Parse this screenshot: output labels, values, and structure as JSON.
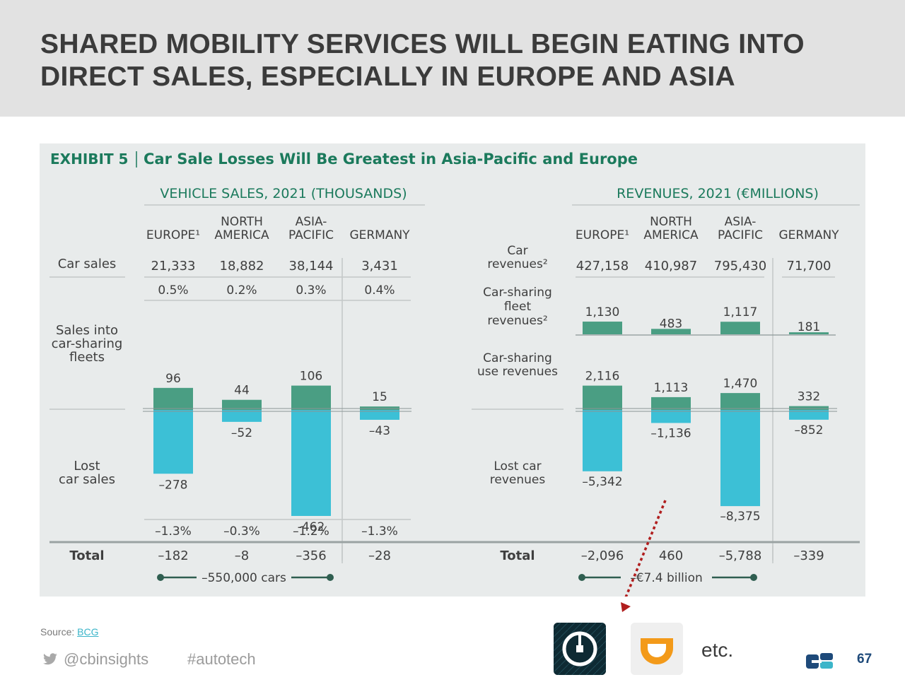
{
  "slide": {
    "title": "SHARED MOBILITY SERVICES WILL BEGIN EATING INTO DIRECT SALES, ESPECIALLY IN EUROPE AND ASIA",
    "source_label": "Source:",
    "source_link": "BCG",
    "twitter_handle": "@cbinsights",
    "hashtag": "#autotech",
    "etc_label": "etc.",
    "page_number": "67",
    "icons": {
      "uber": "uber-app-icon",
      "didi": "didi-app-icon",
      "twitter": "twitter-bird-icon",
      "cb": "cb-insights-logo"
    },
    "colors": {
      "green": "#4a9e83",
      "cyan": "#3cc0d6",
      "title_green": "#1b7a5c",
      "arrow": "#b01e1e"
    }
  },
  "chart_data": [
    {
      "type": "bar",
      "exhibit_label": "EXHIBIT 5",
      "title": "Car Sale Losses Will Be Greatest in Asia-Pacific and Europe",
      "section_title": "VEHICLE SALES, 2021 (THOUSANDS)",
      "categories": [
        [
          "",
          "EUROPE¹"
        ],
        [
          "NORTH",
          "AMERICA"
        ],
        [
          "ASIA-",
          "PACIFIC"
        ],
        [
          "",
          "GERMANY"
        ]
      ],
      "row_labels": {
        "car_sales": [
          "Car sales"
        ],
        "fleet": [
          "Sales into",
          "car-sharing",
          "fleets"
        ],
        "lost": [
          "Lost",
          "car sales"
        ],
        "total": [
          "Total"
        ]
      },
      "car_sales": [
        "21,333",
        "18,882",
        "38,144",
        "3,431"
      ],
      "percent_fleet": [
        "0.5%",
        "0.2%",
        "0.3%",
        "0.4%"
      ],
      "series": [
        {
          "name": "Sales into car-sharing fleets",
          "values": [
            96,
            44,
            106,
            15
          ],
          "labels": [
            "96",
            "44",
            "106",
            "15"
          ]
        },
        {
          "name": "Lost car sales",
          "values": [
            -278,
            -52,
            -462,
            -43
          ],
          "labels": [
            "–278",
            "–52",
            "-462",
            "–43"
          ]
        }
      ],
      "percent_lost": [
        "–1.3%",
        "–0.3%",
        "–1.2%",
        "–1.3%"
      ],
      "totals": [
        "–182",
        "–8",
        "–356",
        "–28"
      ],
      "summary": "–550,000 cars"
    },
    {
      "type": "bar",
      "section_title": "REVENUES, 2021 (€MILLIONS)",
      "categories": [
        [
          "",
          "EUROPE¹"
        ],
        [
          "NORTH",
          "AMERICA"
        ],
        [
          "ASIA-",
          "PACIFIC"
        ],
        [
          "",
          "GERMANY"
        ]
      ],
      "row_labels": {
        "car_revenues": [
          "Car",
          "revenues²"
        ],
        "fleet_revenues": [
          "Car-sharing",
          "fleet",
          "revenues²"
        ],
        "use_revenues": [
          "Car-sharing",
          "use revenues"
        ],
        "lost": [
          "Lost car",
          "revenues"
        ],
        "total": [
          "Total"
        ]
      },
      "car_revenues": [
        "427,158",
        "410,987",
        "795,430",
        "71,700"
      ],
      "fleet_revenues": {
        "values": [
          1130,
          483,
          1117,
          181
        ],
        "labels": [
          "1,130",
          "483",
          "1,117",
          "181"
        ]
      },
      "series": [
        {
          "name": "Car-sharing use revenues",
          "values": [
            2116,
            1113,
            1470,
            332
          ],
          "labels": [
            "2,116",
            "1,113",
            "1,470",
            "332"
          ]
        },
        {
          "name": "Lost car revenues",
          "values": [
            -5342,
            -1136,
            -8375,
            -852
          ],
          "labels": [
            "–5,342",
            "–1,136",
            "–8,375",
            "–852"
          ]
        }
      ],
      "totals": [
        "–2,096",
        "460",
        "–5,788",
        "–339"
      ],
      "summary": "–€7.4 billion"
    }
  ]
}
